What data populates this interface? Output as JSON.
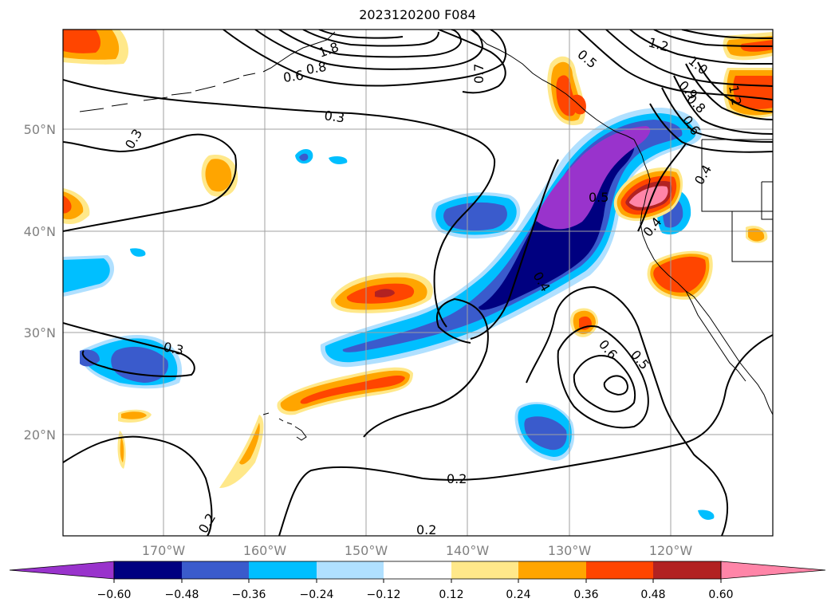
{
  "title": "2023120200 F084",
  "lat_labels": [
    "50°N",
    "40°N",
    "30°N",
    "20°N"
  ],
  "lon_labels": [
    "170°W",
    "160°W",
    "150°W",
    "140°W",
    "130°W",
    "120°W"
  ],
  "contour_labels": [
    "1.8",
    "0.8",
    "0.6",
    "0.7",
    "0.5",
    "1.2",
    "1.0",
    "0.9",
    "0.8",
    "0.6",
    "1.2",
    "0.3",
    "0.3",
    "0.5",
    "0.4",
    "0.4",
    "0.4",
    "0.3",
    "0.6",
    "0.5",
    "0.2",
    "0.2",
    "0.2"
  ],
  "colorbar": {
    "ticks": [
      "−0.60",
      "−0.48",
      "−0.36",
      "−0.24",
      "−0.12",
      "0.12",
      "0.24",
      "0.36",
      "0.48",
      "0.60"
    ],
    "colors": [
      "#9933cc",
      "#000080",
      "#3a5bcc",
      "#00bfff",
      "#b0e0ff",
      "#ffffff",
      "#ffe88a",
      "#ffa500",
      "#ff4500",
      "#b22222",
      "#ff85a8"
    ]
  },
  "colors": {
    "purple": "#9933cc",
    "navy": "#000080",
    "blue": "#3a5bcc",
    "cyan": "#00bfff",
    "lightblue": "#b0e0ff",
    "yellow": "#ffe88a",
    "orange": "#ffa500",
    "redorange": "#ff4500",
    "darkred": "#b22222",
    "pink": "#ff85a8",
    "grid": "#a0a0a0",
    "ticklabel": "#808080"
  }
}
